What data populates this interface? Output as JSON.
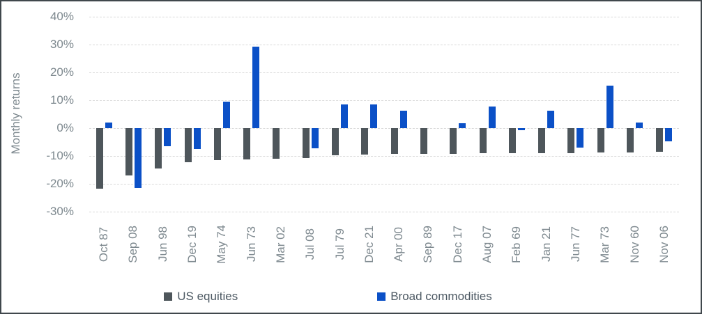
{
  "chart_data": {
    "type": "bar",
    "title": "",
    "xlabel": "",
    "ylabel": "Monthly returns",
    "ylim": [
      -30,
      40
    ],
    "ytick_step": 10,
    "ytick_labels": [
      "40%",
      "30%",
      "20%",
      "10%",
      "0%",
      "-10%",
      "-20%",
      "-30%"
    ],
    "grid": true,
    "legend_position": "bottom-center",
    "categories": [
      "Oct 87",
      "Sep 08",
      "Jun 98",
      "Dec 19",
      "May 74",
      "Jun 73",
      "Mar 02",
      "Jul 08",
      "Jul 79",
      "Dec 21",
      "Apr 00",
      "Sep 89",
      "Dec 17",
      "Aug 07",
      "Feb 69",
      "Jan 21",
      "Jun 77",
      "Mar 73",
      "Nov 60",
      "Nov 06"
    ],
    "series": [
      {
        "name": "US equities",
        "color": "#4e565b",
        "values": [
          -21.8,
          -16.9,
          -14.6,
          -12.3,
          -11.5,
          -11.2,
          -10.9,
          -10.7,
          -9.8,
          -9.4,
          -9.3,
          -9.2,
          -9.2,
          -9.1,
          -9.0,
          -9.0,
          -8.9,
          -8.8,
          -8.7,
          -8.5
        ]
      },
      {
        "name": "Broad commodities",
        "color": "#0b50c7",
        "values": [
          1.9,
          -21.4,
          -6.5,
          -7.4,
          9.5,
          29.3,
          0,
          -7.2,
          8.6,
          8.6,
          6.2,
          0,
          1.7,
          7.7,
          -0.8,
          6.2,
          -6.9,
          15.2,
          2.1,
          -4.8
        ]
      }
    ],
    "colors": {
      "axis_text": "#7e898f",
      "legend_text": "#4d5963",
      "gridline": "#d9d9d9",
      "frame_border": "#40474c"
    }
  }
}
